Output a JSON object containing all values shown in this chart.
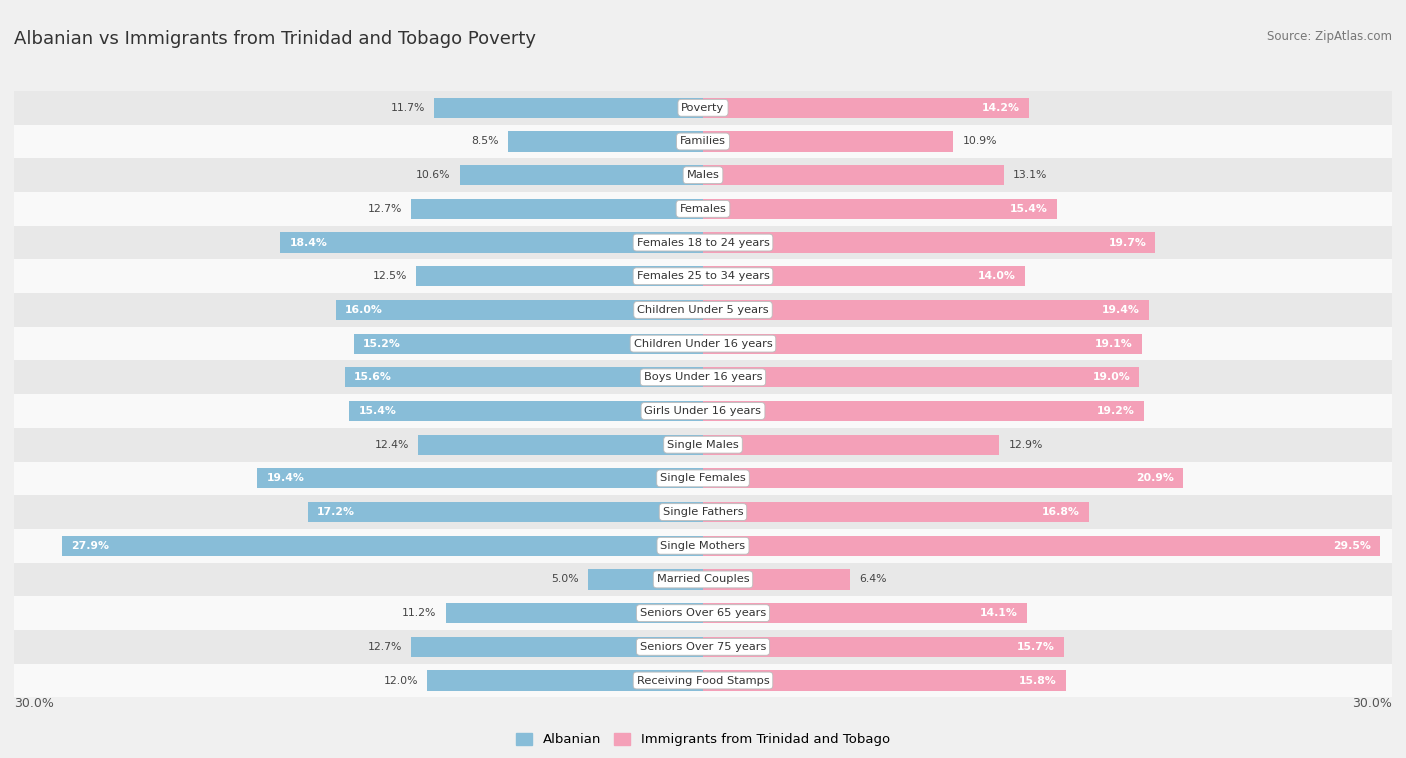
{
  "title": "Albanian vs Immigrants from Trinidad and Tobago Poverty",
  "source": "Source: ZipAtlas.com",
  "categories": [
    "Poverty",
    "Families",
    "Males",
    "Females",
    "Females 18 to 24 years",
    "Females 25 to 34 years",
    "Children Under 5 years",
    "Children Under 16 years",
    "Boys Under 16 years",
    "Girls Under 16 years",
    "Single Males",
    "Single Females",
    "Single Fathers",
    "Single Mothers",
    "Married Couples",
    "Seniors Over 65 years",
    "Seniors Over 75 years",
    "Receiving Food Stamps"
  ],
  "albanian": [
    11.7,
    8.5,
    10.6,
    12.7,
    18.4,
    12.5,
    16.0,
    15.2,
    15.6,
    15.4,
    12.4,
    19.4,
    17.2,
    27.9,
    5.0,
    11.2,
    12.7,
    12.0
  ],
  "immigrants": [
    14.2,
    10.9,
    13.1,
    15.4,
    19.7,
    14.0,
    19.4,
    19.1,
    19.0,
    19.2,
    12.9,
    20.9,
    16.8,
    29.5,
    6.4,
    14.1,
    15.7,
    15.8
  ],
  "albanian_color": "#88bdd8",
  "immigrant_color": "#f4a0b8",
  "albanian_label": "Albanian",
  "immigrant_label": "Immigrants from Trinidad and Tobago",
  "bar_height": 0.6,
  "bg_color": "#f0f0f0",
  "row_color_even": "#f9f9f9",
  "row_color_odd": "#e8e8e8",
  "max_val": 30.0,
  "inside_label_threshold_alb": 14.0,
  "inside_label_threshold_imm": 14.0
}
